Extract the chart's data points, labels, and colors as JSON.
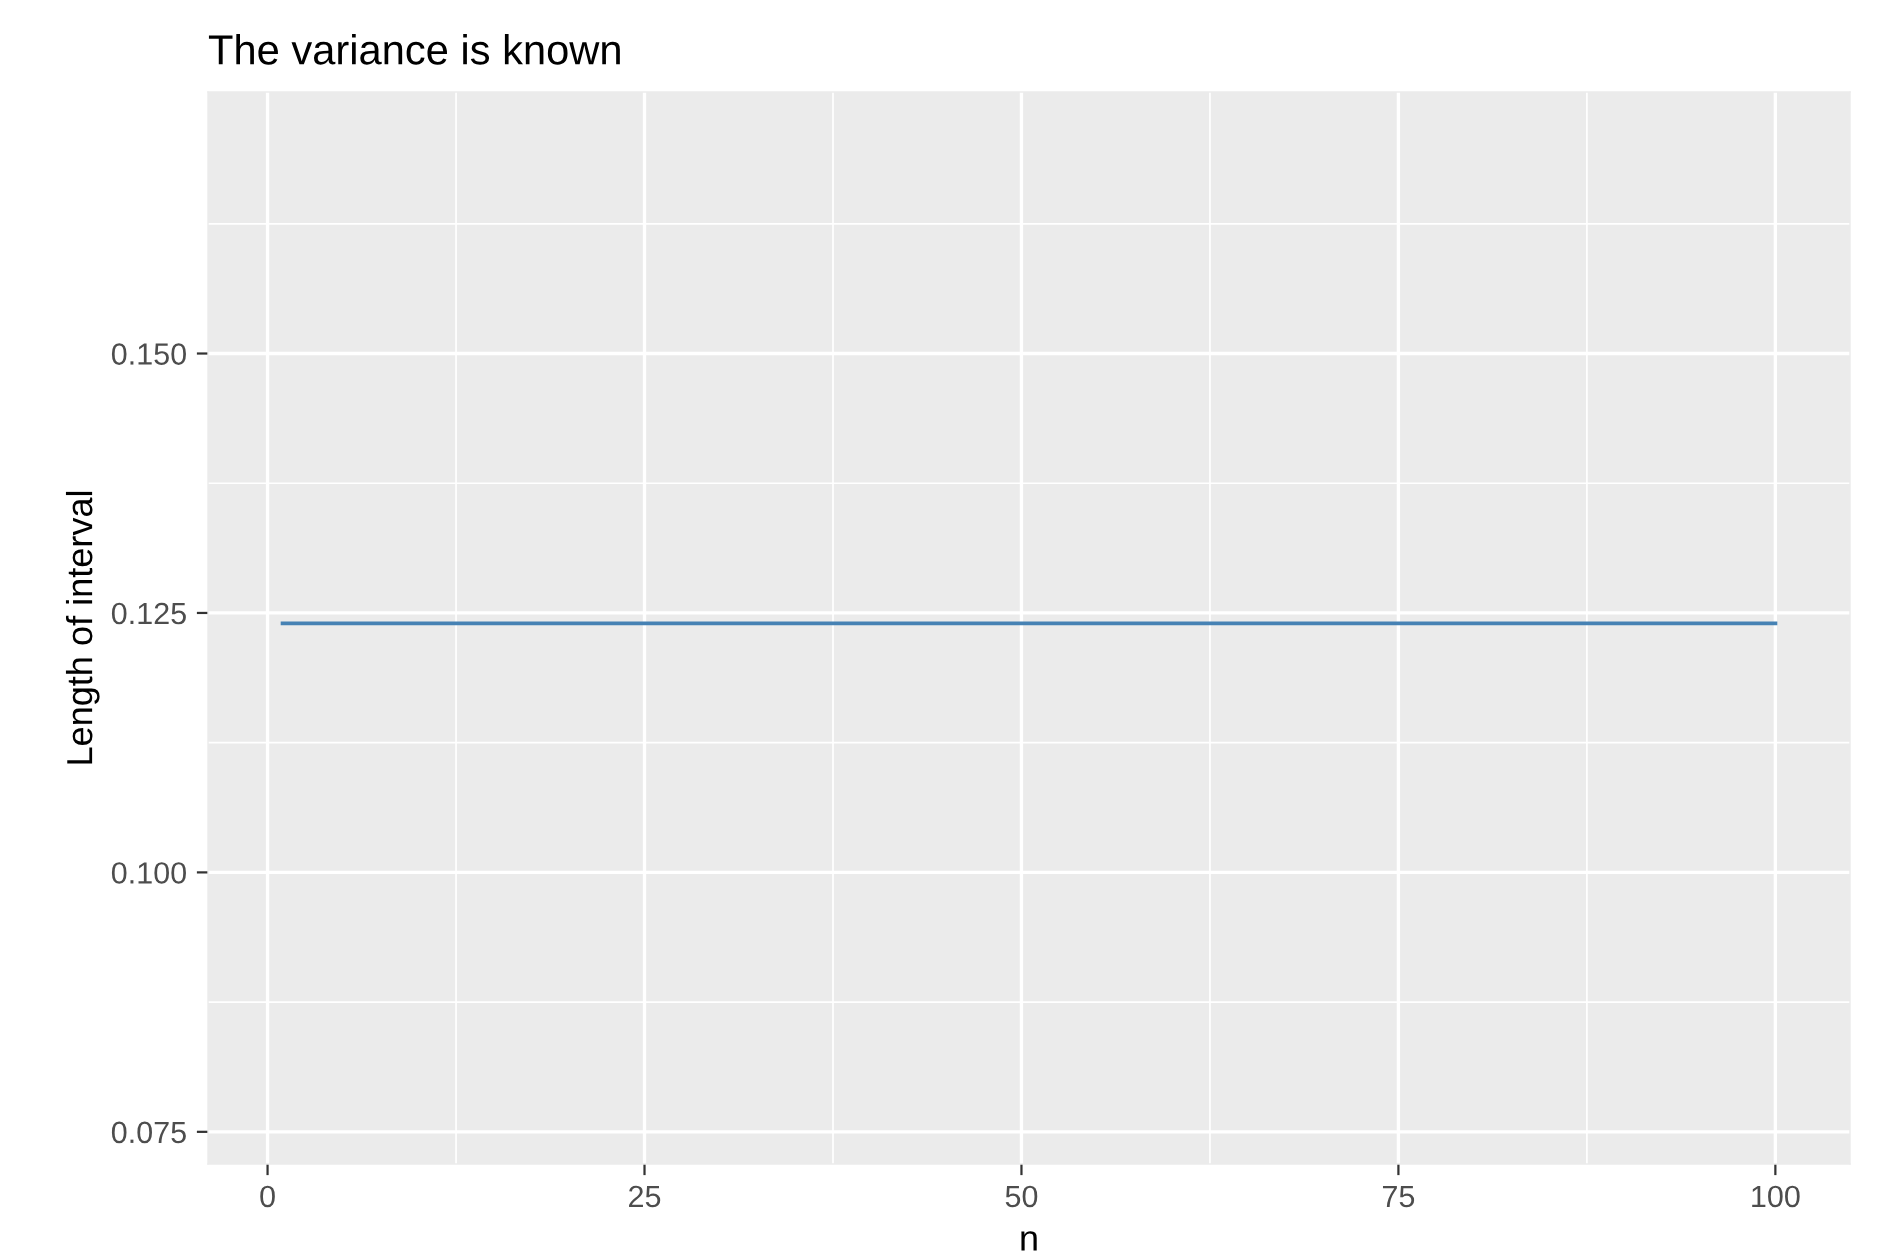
{
  "chart_data": {
    "type": "line",
    "title": "The variance is known",
    "xlabel": "n",
    "ylabel": "Length of interval",
    "series": [
      {
        "color": "#4682b4",
        "x": [
          1,
          100
        ],
        "values": [
          0.124,
          0.124
        ]
      }
    ],
    "xlim": [
      -3.95,
      104.95
    ],
    "xticks": [
      0,
      25,
      50,
      75,
      100
    ],
    "ylim": [
      0.0719,
      0.1752
    ],
    "yticks": [
      0.075,
      {
        "value": 0.1,
        "label": "0.100"
      },
      0.125,
      {
        "value": 0.15,
        "label": "0.150"
      }
    ],
    "grid": true,
    "legend": false,
    "marker": "none",
    "line_style": "solid"
  }
}
